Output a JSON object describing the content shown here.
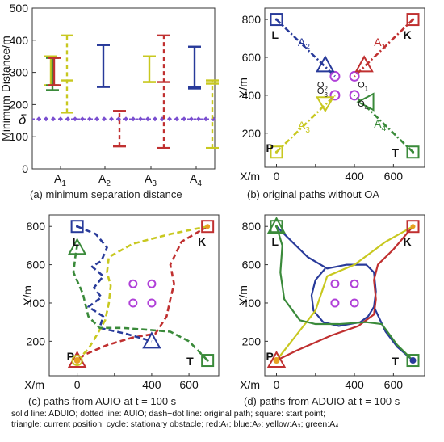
{
  "chart_data": [
    {
      "id": "a",
      "type": "errorbar",
      "caption": "(a) minimum separation distance",
      "ylabel": "Minimum Distance/m",
      "ylim": [
        0,
        500
      ],
      "yticks": [
        0,
        100,
        200,
        300,
        400,
        500
      ],
      "categories": [
        "A1",
        "A2",
        "A3",
        "A4"
      ],
      "threshold_label": "δ",
      "threshold": 155,
      "series": [
        {
          "color": "#c8c820",
          "style": "solid",
          "group": "A1",
          "min": 260,
          "max": 350,
          "mid": 260
        },
        {
          "color": "#c8c820",
          "style": "dashed",
          "group": "A1",
          "min": 175,
          "max": 415,
          "mid": 275
        },
        {
          "color": "#3a8a3a",
          "style": "solid",
          "group": "A1",
          "min": 245,
          "max": 345,
          "mid": 260
        },
        {
          "color": "#c03030",
          "style": "solid",
          "group": "A1",
          "min": 260,
          "max": 345,
          "mid": 260
        },
        {
          "color": "#283a9a",
          "style": "solid",
          "group": "A2",
          "min": 255,
          "max": 385,
          "mid": 255
        },
        {
          "color": "#c03030",
          "style": "dashed",
          "group": "A2",
          "min": 70,
          "max": 180,
          "mid": 180
        },
        {
          "color": "#c8c820",
          "style": "solid",
          "group": "A3",
          "min": 270,
          "max": 350,
          "mid": 270
        },
        {
          "color": "#c03030",
          "style": "dashed",
          "group": "A3",
          "min": 65,
          "max": 415,
          "mid": 270
        },
        {
          "color": "#283a9a",
          "style": "solid",
          "group": "A4",
          "min": 250,
          "max": 380,
          "mid": 255
        },
        {
          "color": "#c8c820",
          "style": "dashed",
          "group": "A4",
          "min": 65,
          "max": 275,
          "mid": 265
        }
      ]
    },
    {
      "id": "b",
      "type": "line",
      "caption": "(b) original paths without OA",
      "ylabel": "Y/m",
      "xlabel": "X/m",
      "xticks": [
        0,
        200,
        400,
        600
      ],
      "yticks": [
        200,
        400,
        600,
        800
      ],
      "xlim": [
        -60,
        760
      ],
      "ylim": [
        20,
        860
      ],
      "points": {
        "L": [
          0,
          800
        ],
        "K": [
          700,
          800
        ],
        "P": [
          0,
          100
        ],
        "T": [
          700,
          100
        ]
      },
      "agent_labels": [
        "A1",
        "A2",
        "A3",
        "A4"
      ],
      "obstacles": [
        {
          "label": "O1",
          "x": 400,
          "y": 500
        },
        {
          "label": "O2",
          "x": 300,
          "y": 500
        },
        {
          "label": "O3",
          "x": 300,
          "y": 400
        },
        {
          "label": "O4",
          "x": 400,
          "y": 400
        }
      ]
    },
    {
      "id": "c",
      "type": "line",
      "caption": "(c) paths from AUIO at  t = 100 s",
      "ylabel": "Y/m",
      "xlabel": "X/m",
      "xticks": [
        0,
        200,
        400,
        600
      ],
      "yticks": [
        200,
        400,
        600,
        800
      ],
      "xlim": [
        -150,
        760
      ],
      "ylim": [
        20,
        860
      ],
      "points": {
        "L": [
          0,
          800
        ],
        "K": [
          700,
          800
        ],
        "P": [
          0,
          100
        ],
        "T": [
          700,
          100
        ]
      }
    },
    {
      "id": "d",
      "type": "line",
      "caption": "(d) paths from ADUIO at  t = 100 s",
      "ylabel": "Y/m",
      "xlabel": "X/m",
      "xticks": [
        0,
        200,
        400,
        600
      ],
      "yticks": [
        200,
        400,
        600,
        800
      ],
      "xlim": [
        -60,
        760
      ],
      "ylim": [
        20,
        860
      ],
      "points": {
        "L": [
          0,
          800
        ],
        "K": [
          700,
          800
        ],
        "P": [
          0,
          100
        ],
        "T": [
          700,
          100
        ]
      }
    }
  ],
  "notes": [
    "solid line: ADUIO;  dotted line: AUIO;  dash−dot line: original path;  square: start point;",
    "triangle: current position;  cycle: stationary obstacle;  red:A₁;  blue:A₂;  yellow:A₃;  green:A₄"
  ],
  "colors": {
    "red": "#c03030",
    "blue": "#283a9a",
    "yellow": "#c8c820",
    "green": "#3a8a3a",
    "obstacle": "#b040d8",
    "threshold": "#7a4fd0"
  }
}
